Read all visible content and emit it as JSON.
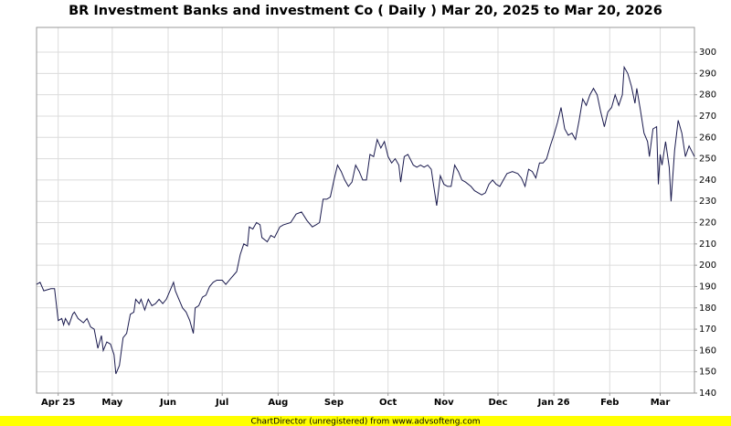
{
  "chart_data": {
    "type": "line",
    "title": "BR Investment Banks and investment Co ( Daily ) Mar 20, 2025 to Mar 20, 2026",
    "footer": "ChartDirector (unregistered) from www.advsofteng.com",
    "grid": true,
    "xlim": [
      0,
      365
    ],
    "ylim": [
      140,
      311.6
    ],
    "xticks": [
      {
        "value": 12,
        "label": "Apr 25"
      },
      {
        "value": 42,
        "label": "May"
      },
      {
        "value": 73,
        "label": "Jun"
      },
      {
        "value": 103,
        "label": "Jul"
      },
      {
        "value": 134,
        "label": "Aug"
      },
      {
        "value": 165,
        "label": "Sep"
      },
      {
        "value": 195,
        "label": "Oct"
      },
      {
        "value": 226,
        "label": "Nov"
      },
      {
        "value": 256,
        "label": "Dec"
      },
      {
        "value": 287,
        "label": "Jan 26"
      },
      {
        "value": 318,
        "label": "Feb"
      },
      {
        "value": 346,
        "label": "Mar"
      }
    ],
    "yticks": [
      140,
      150,
      160,
      170,
      180,
      190,
      200,
      210,
      220,
      230,
      240,
      250,
      260,
      270,
      280,
      290,
      300
    ],
    "x": [
      0,
      2,
      4,
      8,
      10,
      12,
      14,
      15,
      16,
      18,
      20,
      21,
      23,
      26,
      28,
      30,
      32,
      34,
      36,
      37,
      39,
      41,
      43,
      44,
      46,
      48,
      50,
      52,
      54,
      55,
      57,
      58,
      60,
      62,
      64,
      66,
      68,
      70,
      72,
      74,
      76,
      77,
      79,
      81,
      83,
      85,
      87,
      88,
      90,
      92,
      94,
      96,
      98,
      100,
      103,
      105,
      108,
      111,
      113,
      115,
      117,
      118,
      120,
      122,
      124,
      125,
      128,
      130,
      132,
      135,
      137,
      141,
      144,
      147,
      150,
      153,
      155,
      157,
      159,
      161,
      163,
      165,
      167,
      169,
      171,
      173,
      175,
      177,
      179,
      181,
      183,
      185,
      187,
      189,
      191,
      193,
      195,
      197,
      199,
      201,
      202,
      204,
      206,
      209,
      211,
      213,
      215,
      217,
      219,
      220,
      222,
      224,
      226,
      228,
      230,
      232,
      234,
      236,
      238,
      241,
      243,
      245,
      247,
      249,
      251,
      253,
      255,
      257,
      259,
      261,
      264,
      267,
      269,
      271,
      273,
      275,
      277,
      279,
      281,
      283,
      285,
      287,
      289,
      291,
      293,
      295,
      297,
      299,
      301,
      303,
      305,
      307,
      309,
      311,
      313,
      315,
      317,
      319,
      321,
      323,
      325,
      326,
      328,
      330,
      332,
      333,
      335,
      337,
      339,
      340,
      342,
      344,
      345,
      346,
      347,
      349,
      351,
      352,
      354,
      356,
      358,
      360,
      362,
      365
    ],
    "series": [
      {
        "name": "BR Investment Banks and investment Co",
        "color": "#1a1a4e",
        "values": [
          191,
          192,
          188,
          189,
          189,
          174,
          175,
          172,
          175,
          172,
          177,
          178,
          175,
          173,
          175,
          171,
          170,
          161,
          167,
          160,
          164,
          163,
          158,
          149,
          153,
          166,
          168,
          177,
          178,
          184,
          182,
          184,
          179,
          184,
          181,
          182,
          184,
          182,
          184,
          188,
          192,
          188,
          184,
          180,
          178,
          174,
          168,
          180,
          181,
          185,
          186,
          190,
          192,
          193,
          193,
          191,
          194,
          197,
          205,
          210,
          209,
          218,
          217,
          220,
          219,
          213,
          211,
          214,
          213,
          218,
          219,
          220,
          224,
          225,
          221,
          218,
          219,
          220,
          231,
          231,
          232,
          240,
          247,
          244,
          240,
          237,
          239,
          247,
          244,
          240,
          240,
          252,
          251,
          259,
          255,
          258,
          251,
          248,
          250,
          247,
          239,
          251,
          252,
          247,
          246,
          247,
          246,
          247,
          245,
          239,
          228,
          242,
          238,
          237,
          237,
          247,
          244,
          240,
          239,
          237,
          235,
          234,
          233,
          234,
          238,
          240,
          238,
          237,
          240,
          243,
          244,
          243,
          241,
          237,
          245,
          244,
          241,
          248,
          248,
          250,
          256,
          261,
          267,
          274,
          264,
          261,
          262,
          259,
          268,
          278,
          275,
          280,
          283,
          280,
          272,
          265,
          272,
          274,
          280,
          275,
          280,
          293,
          290,
          284,
          276,
          283,
          273,
          262,
          258,
          251,
          264,
          265,
          238,
          252,
          247,
          258,
          246,
          230,
          254,
          268,
          262,
          251,
          256,
          251
        ]
      }
    ]
  }
}
